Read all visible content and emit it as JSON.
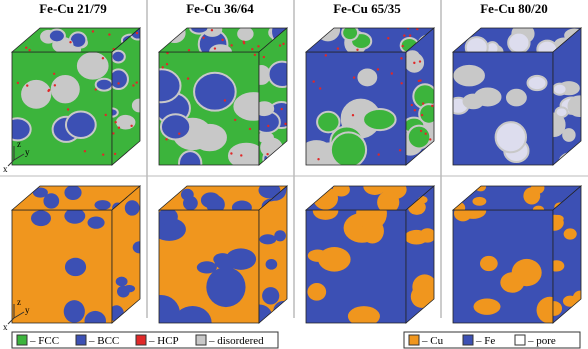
{
  "columns": [
    {
      "title": "Fe-Cu 21/79"
    },
    {
      "title": "Fe-Cu 36/64"
    },
    {
      "title": "Fe-Cu 65/35"
    },
    {
      "title": "Fe-Cu 80/20"
    }
  ],
  "axes_top": {
    "z": "z",
    "y": "y",
    "x": "x"
  },
  "axes_bottom": {
    "z": "z",
    "y": "y",
    "x": "x"
  },
  "legend_structure": [
    "– FCC",
    "– BCC",
    "– HCP",
    "– disordered"
  ],
  "legend_composition": [
    "– Cu",
    "– Fe",
    "– pore"
  ]
}
